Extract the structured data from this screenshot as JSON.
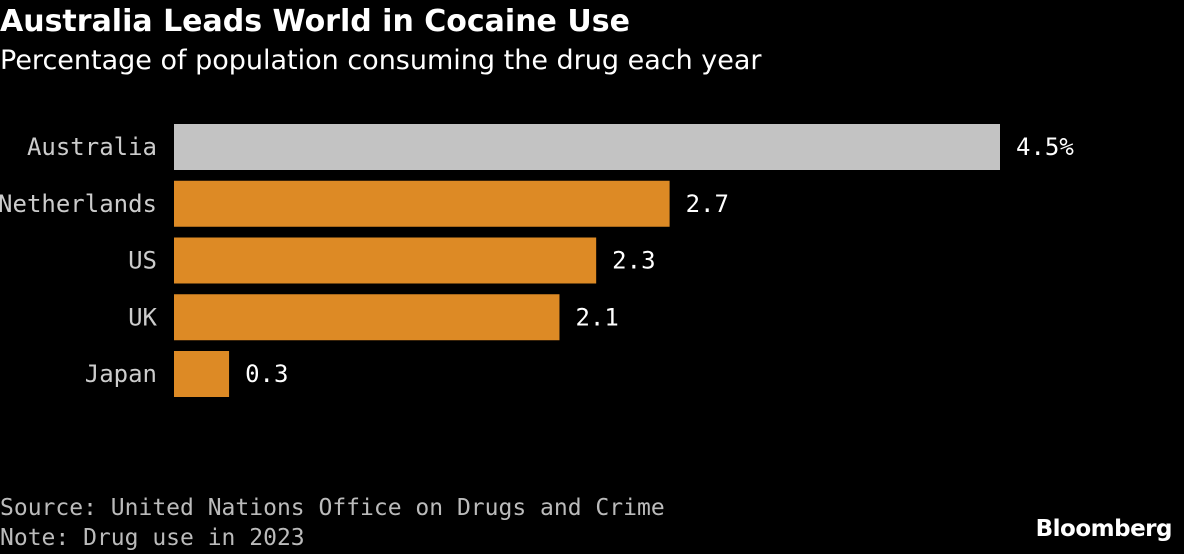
{
  "title": "Australia Leads World in Cocaine Use",
  "subtitle": "Percentage of population consuming the drug each year",
  "source": "Source: United Nations Office on Drugs and Crime",
  "note": "Note: Drug use in 2023",
  "brand": "Bloomberg",
  "colors": {
    "highlight": "#c3c3c3",
    "bar": "#dd8a25",
    "background": "#000000"
  },
  "chart_data": {
    "type": "bar",
    "orientation": "horizontal",
    "title": "Australia Leads World in Cocaine Use",
    "subtitle": "Percentage of population consuming the drug each year",
    "categories": [
      "Australia",
      "Netherlands",
      "US",
      "UK",
      "Japan"
    ],
    "values": [
      4.5,
      2.7,
      2.3,
      2.1,
      0.3
    ],
    "value_labels": [
      "4.5%",
      "2.7",
      "2.3",
      "2.1",
      "0.3"
    ],
    "highlighted_category": "Australia",
    "xlim": [
      0,
      4.5
    ],
    "unit": "%",
    "grid": false,
    "legend": "none"
  }
}
